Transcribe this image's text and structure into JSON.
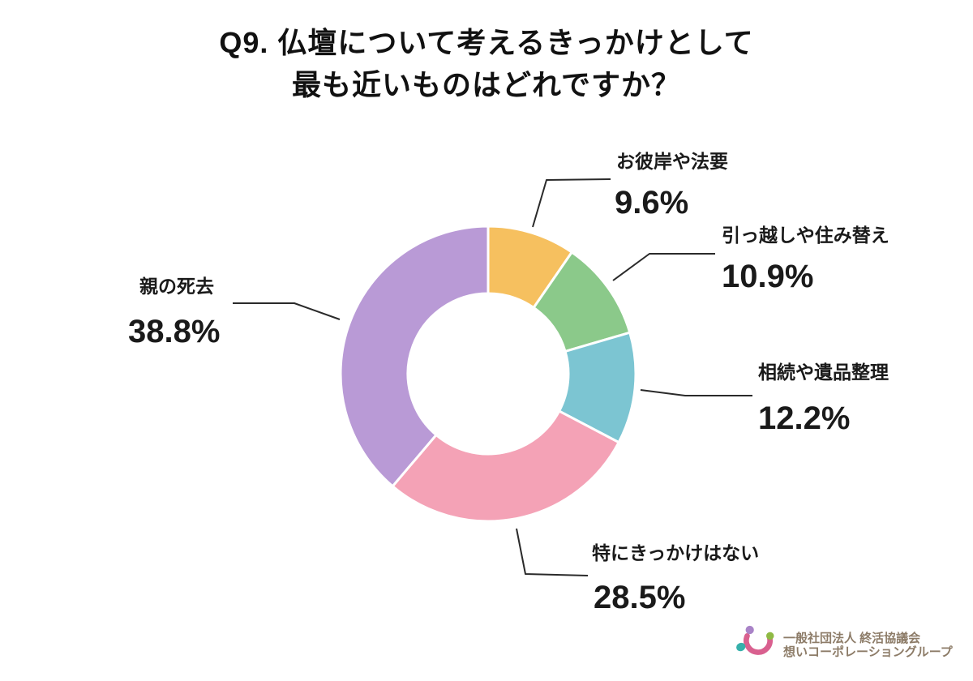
{
  "title": {
    "line1": "Q9. 仏壇について考えるきっかけとして",
    "line2": "最も近いものはどれですか？"
  },
  "chart_data": {
    "type": "pie",
    "donut": true,
    "title": "Q9. 仏壇について考えるきっかけとして 最も近いものはどれですか？",
    "categories": [
      "お彼岸や法要",
      "引っ越しや住み替え",
      "相続や遺品整理",
      "特にきっかけはない",
      "親の死去"
    ],
    "values": [
      9.6,
      10.9,
      12.2,
      28.5,
      38.8
    ],
    "value_labels": [
      "9.6%",
      "10.9%",
      "12.2%",
      "28.5%",
      "38.8%"
    ],
    "unit": "%",
    "colors": [
      "#f6c05f",
      "#8bc98a",
      "#7cc5d2",
      "#f4a2b6",
      "#b99ad6"
    ],
    "start_angle_deg": 0,
    "direction": "clockwise",
    "inner_radius_ratio": 0.545,
    "separator_color": "#ffffff",
    "legend_position": "callouts",
    "label_color": "#1a1a1a",
    "leader_line_color": "#2a2a2a"
  },
  "logo": {
    "line1": "一般社団法人 終活協議会",
    "line2": "想いコーポレーショングループ",
    "text_color": "#8d7c68",
    "mark_colors": {
      "purple": "#a983c7",
      "green": "#8fba44",
      "teal": "#35b0ab",
      "pink": "#d9608f"
    }
  }
}
